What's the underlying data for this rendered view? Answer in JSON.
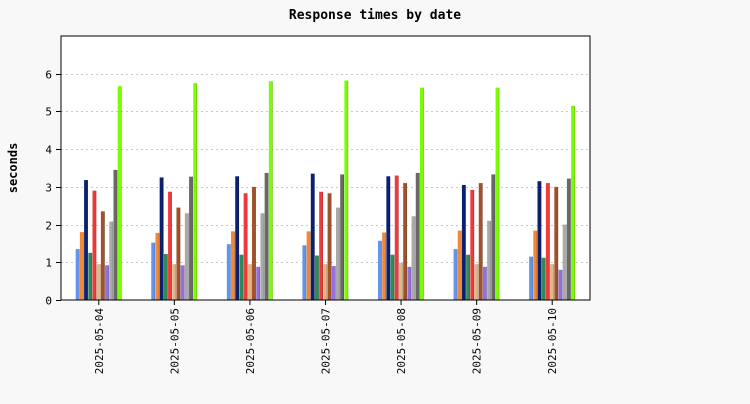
{
  "chart_data": {
    "type": "bar",
    "title": "Response times by date",
    "xlabel": "",
    "ylabel": "seconds",
    "ylim": [
      0,
      7
    ],
    "yticks": [
      0,
      1,
      2,
      3,
      4,
      5,
      6
    ],
    "grid": true,
    "legend": "none",
    "categories": [
      "2025-05-04",
      "2025-05-05",
      "2025-05-06",
      "2025-05-07",
      "2025-05-08",
      "2025-05-09",
      "2025-05-10"
    ],
    "series": [
      {
        "color": "#6495ed",
        "values": [
          1.35,
          1.52,
          1.48,
          1.45,
          1.57,
          1.35,
          1.15
        ]
      },
      {
        "color": "#f08838",
        "values": [
          1.8,
          1.78,
          1.82,
          1.82,
          1.79,
          1.84,
          1.84
        ]
      },
      {
        "color": "#0b2070",
        "values": [
          3.18,
          3.25,
          3.28,
          3.35,
          3.28,
          3.05,
          3.15
        ]
      },
      {
        "color": "#2e8b57",
        "values": [
          1.25,
          1.22,
          1.2,
          1.18,
          1.2,
          1.2,
          1.12
        ]
      },
      {
        "color": "#ee3a3a",
        "values": [
          2.9,
          2.87,
          2.83,
          2.87,
          3.3,
          2.92,
          3.1
        ]
      },
      {
        "color": "#deb887",
        "values": [
          0.95,
          0.95,
          0.95,
          0.95,
          0.98,
          0.95,
          0.95
        ]
      },
      {
        "color": "#a0522d",
        "values": [
          2.35,
          2.45,
          3.0,
          2.83,
          3.1,
          3.1,
          3.0
        ]
      },
      {
        "color": "#9370db",
        "values": [
          0.92,
          0.92,
          0.88,
          0.9,
          0.88,
          0.88,
          0.8
        ]
      },
      {
        "color": "#a9a9a9",
        "values": [
          2.08,
          2.3,
          2.3,
          2.45,
          2.22,
          2.1,
          2.0
        ]
      },
      {
        "color": "#696969",
        "values": [
          3.45,
          3.27,
          3.37,
          3.33,
          3.37,
          3.33,
          3.22
        ]
      },
      {
        "color": "#7cfc00",
        "values": [
          5.67,
          5.75,
          5.8,
          5.82,
          5.63,
          5.63,
          5.15
        ]
      }
    ]
  }
}
